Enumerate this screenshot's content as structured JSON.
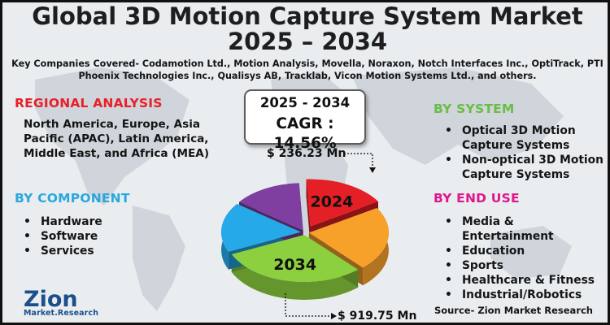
{
  "title_line1": "Global 3D Motion Capture System Market",
  "title_line2": "2025 – 2034",
  "companies": "Key Companies Covered- Codamotion Ltd., Motion Analysis, Movella, Noraxon, Notch Interfaces Inc., OptiTrack, PTI Phoenix Technologies Inc., Qualisys AB, Tracklab, Vicon Motion Systems Ltd., and others.",
  "regional": {
    "heading": "REGIONAL ANALYSIS",
    "text": "North America, Europe, Asia Pacific (APAC), Latin America, Middle East, and Africa (MEA)"
  },
  "by_component": {
    "heading": "BY COMPONENT",
    "items": [
      "Hardware",
      "Software",
      "Services"
    ]
  },
  "by_system": {
    "heading": "BY SYSTEM",
    "items": [
      "Optical 3D Motion Capture Systems",
      "Non-optical 3D Motion Capture Systems"
    ]
  },
  "by_end_use": {
    "heading": "BY END USE",
    "items": [
      "Media & Entertainment",
      "Education",
      "Sports",
      "Healthcare & Fitness",
      "Industrial/Robotics"
    ]
  },
  "cagr_box": {
    "years": "2025 - 2034",
    "cagr": "CAGR : 14.56%"
  },
  "source": "Source- Zion Market Research",
  "logo": {
    "name": "Zion",
    "sub": "Market.Research"
  },
  "colors": {
    "red_heading": "#e8202a",
    "green_heading": "#6abd45",
    "blue_heading": "#2aa7dd",
    "magenta_heading": "#e0168c"
  },
  "chart_data": {
    "type": "pie",
    "title": "Global 3D Motion Capture System Market 2025 – 2034",
    "unit": "USD Mn",
    "slices": [
      {
        "name": "2024",
        "label": "2024",
        "value": 17,
        "color": "#e51f26"
      },
      {
        "name": "orange",
        "label": "",
        "value": 22,
        "color": "#f7a12b"
      },
      {
        "name": "2034",
        "label": "2034",
        "value": 30,
        "color": "#8ccf3f"
      },
      {
        "name": "blue",
        "label": "",
        "value": 17,
        "color": "#25a9e8"
      },
      {
        "name": "purple",
        "label": "",
        "value": 14,
        "color": "#7e3fa0"
      }
    ],
    "annotations": [
      {
        "year": "2024",
        "text": "$ 236.23 Mn"
      },
      {
        "year": "2034",
        "text": "$ 919.75 Mn"
      }
    ]
  }
}
